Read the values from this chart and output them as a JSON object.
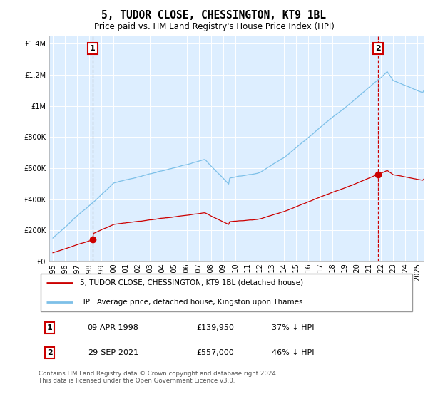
{
  "title": "5, TUDOR CLOSE, CHESSINGTON, KT9 1BL",
  "subtitle": "Price paid vs. HM Land Registry's House Price Index (HPI)",
  "legend_line1": "5, TUDOR CLOSE, CHESSINGTON, KT9 1BL (detached house)",
  "legend_line2": "HPI: Average price, detached house, Kingston upon Thames",
  "footer": "Contains HM Land Registry data © Crown copyright and database right 2024.\nThis data is licensed under the Open Government Licence v3.0.",
  "sale1_date": "09-APR-1998",
  "sale1_price": "£139,950",
  "sale1_hpi": "37% ↓ HPI",
  "sale2_date": "29-SEP-2021",
  "sale2_price": "£557,000",
  "sale2_hpi": "46% ↓ HPI",
  "sale1_x": 1998.28,
  "sale1_y": 139950,
  "sale2_x": 2021.75,
  "sale2_y": 557000,
  "hpi_color": "#7dc0e8",
  "price_color": "#cc0000",
  "plot_bg_color": "#ddeeff",
  "background_color": "#ffffff",
  "grid_color": "#ffffff",
  "ylim": [
    0,
    1450000
  ],
  "xlim_start": 1994.7,
  "xlim_end": 2025.5
}
